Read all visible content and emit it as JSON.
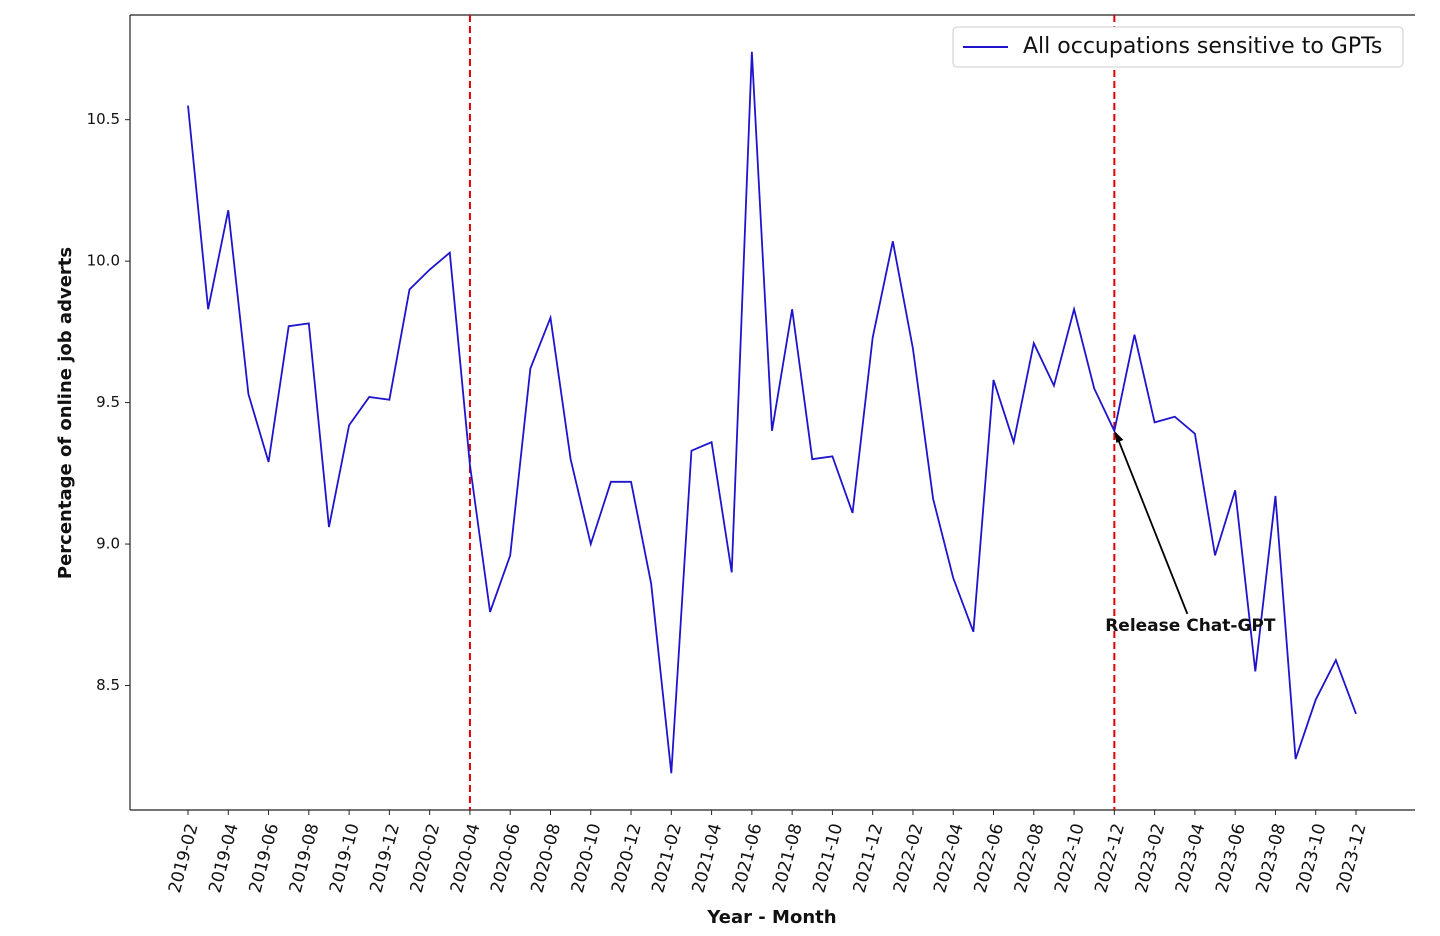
{
  "chart_data": {
    "type": "line",
    "xlabel": "Year - Month",
    "ylabel": "Percentage of online job adverts",
    "categories": [
      "2019-02",
      null,
      "2019-04",
      null,
      "2019-06",
      null,
      "2019-08",
      null,
      "2019-10",
      null,
      "2019-12",
      null,
      "2020-02",
      null,
      "2020-04",
      null,
      "2020-06",
      null,
      "2020-08",
      null,
      "2020-10",
      null,
      "2020-12",
      null,
      "2021-02",
      null,
      "2021-04",
      null,
      "2021-06",
      null,
      "2021-08",
      null,
      "2021-10",
      null,
      "2021-12",
      null,
      "2022-02",
      null,
      "2022-04",
      null,
      "2022-06",
      null,
      "2022-08",
      null,
      "2022-10",
      null,
      "2022-12",
      null,
      "2023-02",
      null,
      "2023-04",
      null,
      "2023-06",
      null,
      "2023-08",
      null,
      "2023-10",
      null,
      "2023-12"
    ],
    "series": [
      {
        "name": "All occupations sensitive to GPTs",
        "color": "#1f14cc",
        "values": [
          10.55,
          9.83,
          10.18,
          9.53,
          9.29,
          9.77,
          9.78,
          9.06,
          9.42,
          9.52,
          9.51,
          9.9,
          9.97,
          10.03,
          9.28,
          8.76,
          8.96,
          9.62,
          9.8,
          9.3,
          9.0,
          9.22,
          9.22,
          8.86,
          8.19,
          9.33,
          9.36,
          8.9,
          10.74,
          9.4,
          9.83,
          9.3,
          9.31,
          9.11,
          9.73,
          10.07,
          9.69,
          9.16,
          8.88,
          8.69,
          9.58,
          9.36,
          9.71,
          9.56,
          9.83,
          9.55,
          9.4,
          9.74,
          9.43,
          9.45,
          9.39,
          8.96,
          9.19,
          8.55,
          9.17,
          8.24,
          8.45,
          8.59,
          8.4
        ]
      }
    ],
    "ylim": [
      8.06,
      10.87
    ],
    "yticks": [
      8.5,
      {
        "value": 9,
        "label": "9.0"
      },
      9.5,
      {
        "value": 10,
        "label": "10.0"
      },
      10.5
    ],
    "vlines": [
      {
        "x": "2020-04",
        "color": "#e00000"
      },
      {
        "x": "2022-12",
        "color": "#e00000"
      }
    ],
    "annotation": {
      "text": "Release Chat-GPT",
      "x": "2022-12",
      "y": 9.4
    },
    "legend": "upper right",
    "grid": false
  }
}
